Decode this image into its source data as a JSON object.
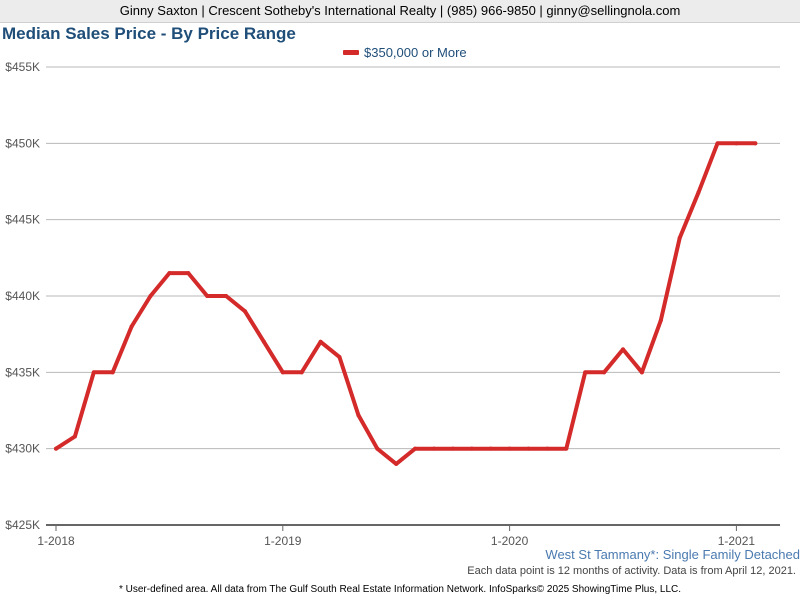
{
  "header": {
    "agent_line": "Ginny Saxton | Crescent Sotheby's International Realty | (985) 966-9850 | ginny@sellingnola.com"
  },
  "chart_data": {
    "type": "line",
    "title": "Median Sales Price - By Price Range",
    "xlabel": "",
    "ylabel": "",
    "ylim": [
      425000,
      455000
    ],
    "y_ticks": [
      425000,
      430000,
      435000,
      440000,
      445000,
      450000,
      455000
    ],
    "y_tick_labels": [
      "$425K",
      "$430K",
      "$435K",
      "$440K",
      "$445K",
      "$450K",
      "$455K"
    ],
    "x_tick_labels": [
      "1-2018",
      "1-2019",
      "1-2020",
      "1-2021"
    ],
    "x_tick_months": [
      0,
      12,
      24,
      36
    ],
    "legend_position": "top-center",
    "grid": true,
    "series": [
      {
        "name": "$350,000 or More",
        "color": "#d42a2a",
        "x_months": [
          0,
          1,
          2,
          3,
          4,
          5,
          6,
          7,
          8,
          9,
          10,
          11,
          12,
          13,
          14,
          15,
          16,
          17,
          18,
          19,
          20,
          21,
          22,
          23,
          24,
          25,
          26,
          27,
          28,
          29,
          30,
          31,
          32,
          33,
          34,
          35,
          36,
          37
        ],
        "values": [
          430000,
          430800,
          435000,
          435000,
          438000,
          440000,
          441500,
          441500,
          440000,
          440000,
          439000,
          437000,
          435000,
          435000,
          437000,
          436000,
          432200,
          430000,
          429000,
          430000,
          430000,
          430000,
          430000,
          430000,
          430000,
          430000,
          430000,
          430000,
          435000,
          435000,
          436500,
          435000,
          438400,
          443800,
          446800,
          450000,
          450000,
          450000
        ]
      }
    ]
  },
  "footer": {
    "area_label": "West St Tammany*: Single Family Detached",
    "note": "Each data point is 12 months of activity. Data is from April 12, 2021.",
    "disclaimer": "* User-defined area. All data from The Gulf South Real Estate Information Network. InfoSparks© 2025 ShowingTime Plus, LLC."
  }
}
